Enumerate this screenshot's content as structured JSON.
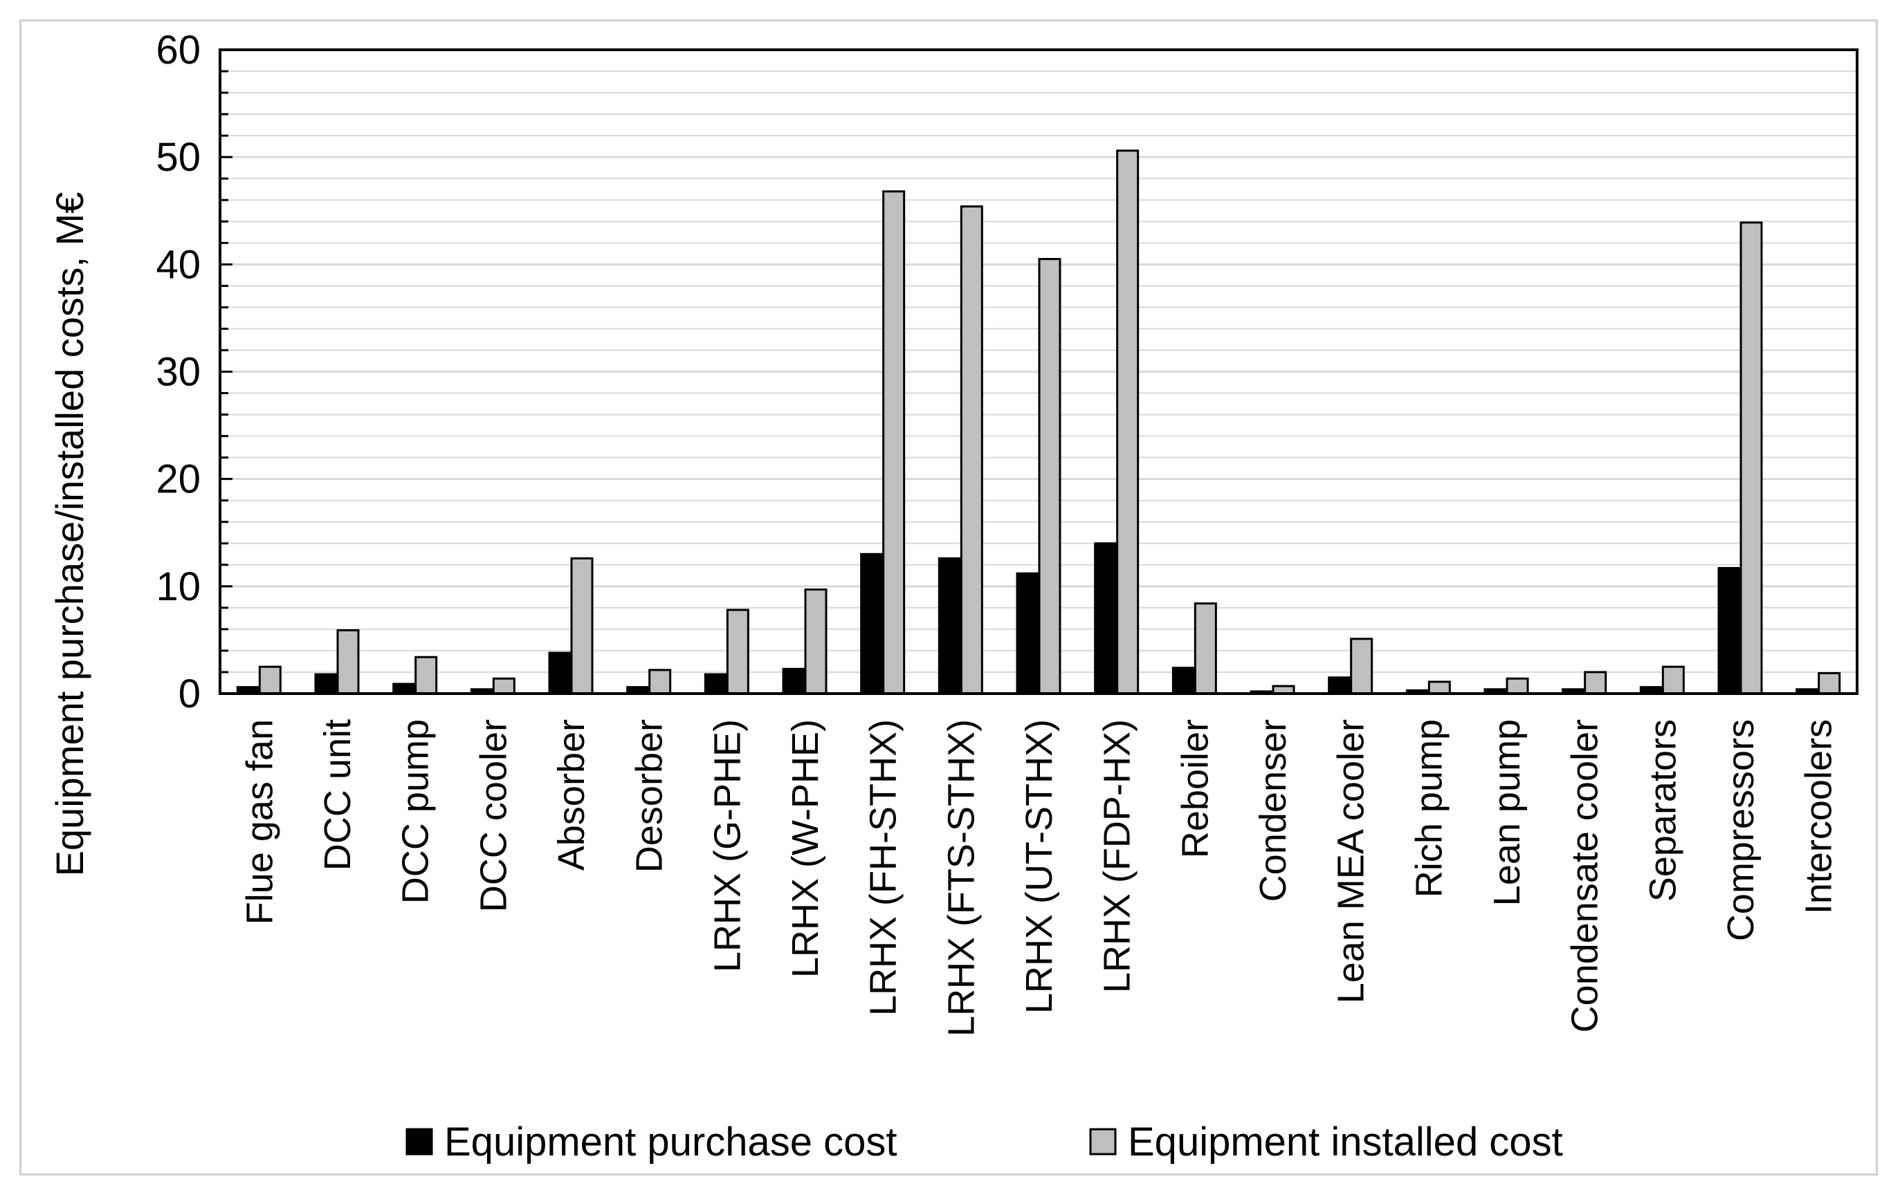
{
  "chart_data": {
    "type": "bar",
    "title": "",
    "xlabel": "",
    "ylabel": "Equipment purchase/installed costs, M€",
    "ylim": [
      0,
      60
    ],
    "yticks": [
      0,
      10,
      20,
      30,
      40,
      50,
      60
    ],
    "grid": true,
    "legend_position": "bottom",
    "categories": [
      "Flue gas fan",
      "DCC unit",
      "DCC pump",
      "DCC cooler",
      "Absorber",
      "Desorber",
      "LRHX (G-PHE)",
      "LRHX (W-PHE)",
      "LRHX (FH-STHX)",
      "LRHX (FTS-STHX)",
      "LRHX (UT-STHX)",
      "LRHX (FDP-HX)",
      "Reboiler",
      "Condenser",
      "Lean MEA cooler",
      "Rich pump",
      "Lean pump",
      "Condensate cooler",
      "Separators",
      "Compressors",
      "Intercoolers"
    ],
    "series": [
      {
        "name": "Equipment purchase cost",
        "color": "#000000",
        "values": [
          0.6,
          1.8,
          0.9,
          0.4,
          3.8,
          0.6,
          1.8,
          2.3,
          13.0,
          12.6,
          11.2,
          14.0,
          2.4,
          0.2,
          1.5,
          0.3,
          0.4,
          0.4,
          0.6,
          11.7,
          0.4
        ]
      },
      {
        "name": "Equipment installed cost",
        "color": "#bfbfbf",
        "values": [
          2.5,
          5.9,
          3.4,
          1.4,
          12.6,
          2.2,
          7.8,
          9.7,
          46.8,
          45.4,
          40.5,
          50.6,
          8.4,
          0.7,
          5.1,
          1.1,
          1.4,
          2.0,
          2.5,
          43.9,
          1.9
        ]
      }
    ]
  }
}
